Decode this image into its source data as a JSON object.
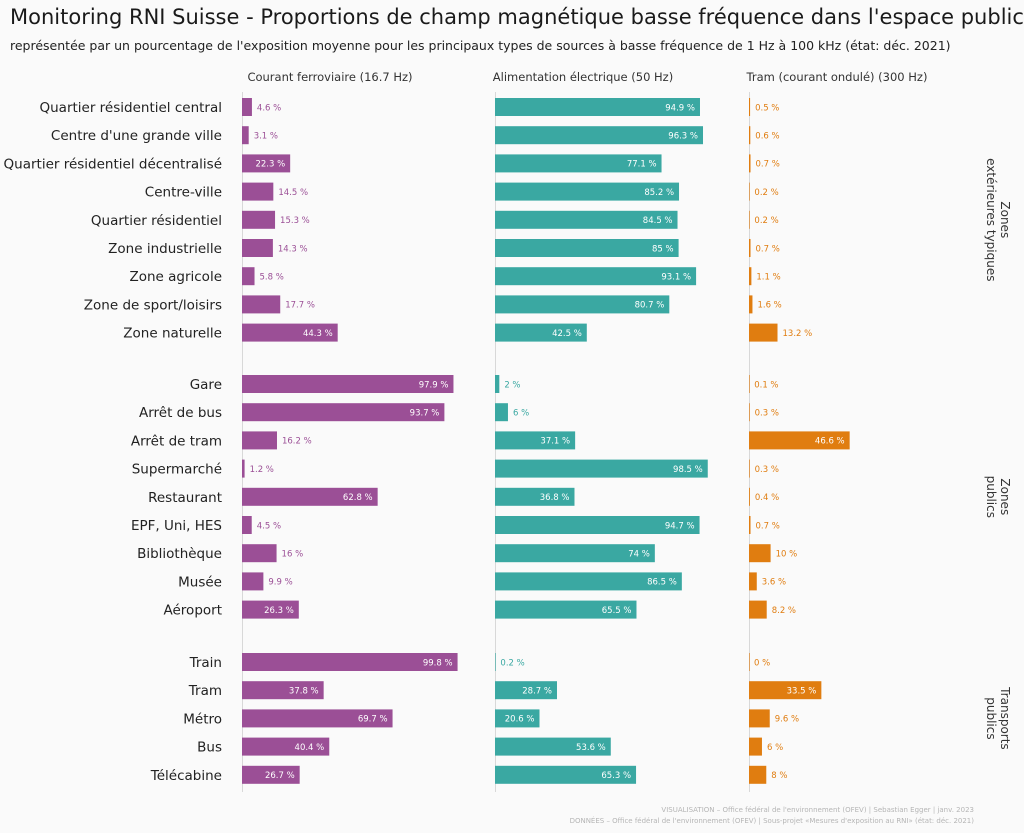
{
  "title": "Monitoring RNI Suisse - Proportions de champ magnétique basse fréquence dans l'espace public",
  "subtitle": "représentée par un pourcentage de l'exposition moyenne pour les principaux types de sources à basse fréquence de 1 Hz à 100 kHz (état: déc. 2021)",
  "credits": {
    "line1": "VISUALISATION – Office fédéral de l'environnement (OFEV) | Sebastian Egger | janv. 2023",
    "line2": "DONNÉES – Office fédéral de l'environnement (OFEV) | Sous-projet «Mesures d'exposition au RNI» (état: déc. 2021)"
  },
  "chart_data": {
    "type": "bar",
    "orientation": "horizontal",
    "value_unit": "%",
    "series": [
      {
        "name": "Courant ferroviaire (16.7 Hz)",
        "color": "#9b4f96"
      },
      {
        "name": "Alimentation électrique (50 Hz)",
        "color": "#3aa8a2"
      },
      {
        "name": "Tram (courant ondulé) (300 Hz)",
        "color": "#e07d10"
      }
    ],
    "groups": [
      {
        "label": "Zones extérieures typiques",
        "rows": [
          {
            "category": "Quartier résidentiel central",
            "values": [
              4.6,
              94.9,
              0.5
            ],
            "labels": [
              "4.6 %",
              "94.9 %",
              "0.5 %"
            ]
          },
          {
            "category": "Centre d'une grande ville",
            "values": [
              3.1,
              96.3,
              0.6
            ],
            "labels": [
              "3.1 %",
              "96.3 %",
              "0.6 %"
            ]
          },
          {
            "category": "Quartier résidentiel décentralisé",
            "values": [
              22.3,
              77.1,
              0.7
            ],
            "labels": [
              "22.3 %",
              "77.1 %",
              "0.7 %"
            ]
          },
          {
            "category": "Centre-ville",
            "values": [
              14.5,
              85.2,
              0.2
            ],
            "labels": [
              "14.5 %",
              "85.2 %",
              "0.2 %"
            ]
          },
          {
            "category": "Quartier résidentiel",
            "values": [
              15.3,
              84.5,
              0.2
            ],
            "labels": [
              "15.3 %",
              "84.5 %",
              "0.2 %"
            ]
          },
          {
            "category": "Zone industrielle",
            "values": [
              14.3,
              85,
              0.7
            ],
            "labels": [
              "14.3 %",
              "85 %",
              "0.7 %"
            ]
          },
          {
            "category": "Zone agricole",
            "values": [
              5.8,
              93.1,
              1.1
            ],
            "labels": [
              "5.8 %",
              "93.1 %",
              "1.1 %"
            ]
          },
          {
            "category": "Zone de sport/loisirs",
            "values": [
              17.7,
              80.7,
              1.6
            ],
            "labels": [
              "17.7 %",
              "80.7 %",
              "1.6 %"
            ]
          },
          {
            "category": "Zone naturelle",
            "values": [
              44.3,
              42.5,
              13.2
            ],
            "labels": [
              "44.3 %",
              "42.5 %",
              "13.2 %"
            ]
          }
        ]
      },
      {
        "label": "Zones publics",
        "rows": [
          {
            "category": "Gare",
            "values": [
              97.9,
              2,
              0.1
            ],
            "labels": [
              "97.9 %",
              "2 %",
              "0.1 %"
            ]
          },
          {
            "category": "Arrêt de bus",
            "values": [
              93.7,
              6,
              0.3
            ],
            "labels": [
              "93.7 %",
              "6 %",
              "0.3 %"
            ]
          },
          {
            "category": "Arrêt de tram",
            "values": [
              16.2,
              37.1,
              46.6
            ],
            "labels": [
              "16.2 %",
              "37.1 %",
              "46.6 %"
            ]
          },
          {
            "category": "Supermarché",
            "values": [
              1.2,
              98.5,
              0.3
            ],
            "labels": [
              "1.2 %",
              "98.5 %",
              "0.3 %"
            ]
          },
          {
            "category": "Restaurant",
            "values": [
              62.8,
              36.8,
              0.4
            ],
            "labels": [
              "62.8 %",
              "36.8 %",
              "0.4 %"
            ]
          },
          {
            "category": "EPF, Uni, HES",
            "values": [
              4.5,
              94.7,
              0.7
            ],
            "labels": [
              "4.5 %",
              "94.7 %",
              "0.7 %"
            ]
          },
          {
            "category": "Bibliothèque",
            "values": [
              16,
              74,
              10
            ],
            "labels": [
              "16 %",
              "74 %",
              "10 %"
            ]
          },
          {
            "category": "Musée",
            "values": [
              9.9,
              86.5,
              3.6
            ],
            "labels": [
              "9.9 %",
              "86.5 %",
              "3.6 %"
            ]
          },
          {
            "category": "Aéroport",
            "values": [
              26.3,
              65.5,
              8.2
            ],
            "labels": [
              "26.3 %",
              "65.5 %",
              "8.2 %"
            ]
          }
        ]
      },
      {
        "label": "Transports publics",
        "rows": [
          {
            "category": "Train",
            "values": [
              99.8,
              0.2,
              0
            ],
            "labels": [
              "99.8 %",
              "0.2 %",
              "0 %"
            ]
          },
          {
            "category": "Tram",
            "values": [
              37.8,
              28.7,
              33.5
            ],
            "labels": [
              "37.8 %",
              "28.7 %",
              "33.5 %"
            ]
          },
          {
            "category": "Métro",
            "values": [
              69.7,
              20.6,
              9.6
            ],
            "labels": [
              "69.7 %",
              "20.6 %",
              "9.6 %"
            ]
          },
          {
            "category": "Bus",
            "values": [
              40.4,
              53.6,
              6
            ],
            "labels": [
              "40.4 %",
              "53.6 %",
              "6 %"
            ]
          },
          {
            "category": "Télécabine",
            "values": [
              26.7,
              65.3,
              8
            ],
            "labels": [
              "26.7 %",
              "65.3 %",
              "8 %"
            ]
          }
        ]
      }
    ]
  }
}
